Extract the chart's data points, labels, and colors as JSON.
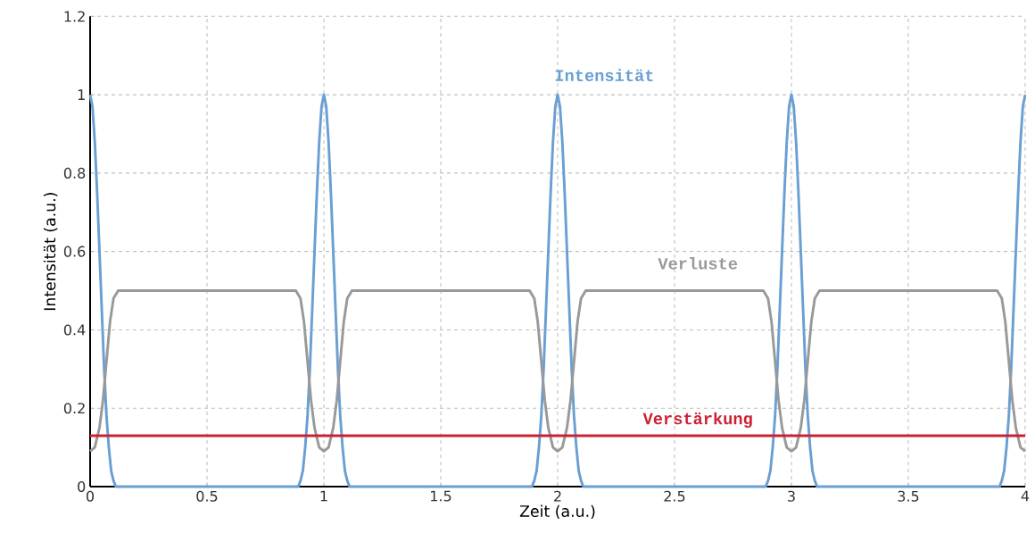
{
  "chart_data": {
    "type": "line",
    "xlabel": "Zeit (a.u.)",
    "ylabel": "Intensität (a.u.)",
    "xlim": [
      0,
      4
    ],
    "ylim": [
      0,
      1.2
    ],
    "xticks": [
      0,
      0.5,
      1,
      1.5,
      2,
      2.5,
      3,
      3.5,
      4
    ],
    "yticks": [
      0,
      0.2,
      0.4,
      0.6,
      0.8,
      1,
      1.2
    ],
    "grid": true,
    "legend": false,
    "marker": "none",
    "line_style": "solid",
    "series": [
      {
        "name": "Intensität",
        "color": "#6a9fd4",
        "x": [
          0,
          0.01,
          0.02,
          0.03,
          0.04,
          0.05,
          0.06,
          0.07,
          0.08,
          0.09,
          0.1,
          0.11,
          0.89,
          0.9,
          0.91,
          0.92,
          0.93,
          0.94,
          0.95,
          0.96,
          0.97,
          0.98,
          0.99,
          1,
          1.01,
          1.02,
          1.03,
          1.04,
          1.05,
          1.06,
          1.07,
          1.08,
          1.09,
          1.1,
          1.11,
          1.89,
          1.9,
          1.91,
          1.92,
          1.93,
          1.94,
          1.95,
          1.96,
          1.97,
          1.98,
          1.99,
          2,
          2.01,
          2.02,
          2.03,
          2.04,
          2.05,
          2.06,
          2.07,
          2.08,
          2.09,
          2.1,
          2.11,
          2.89,
          2.9,
          2.91,
          2.92,
          2.93,
          2.94,
          2.95,
          2.96,
          2.97,
          2.98,
          2.99,
          3,
          3.01,
          3.02,
          3.03,
          3.04,
          3.05,
          3.06,
          3.07,
          3.08,
          3.09,
          3.1,
          3.11,
          3.89,
          3.9,
          3.91,
          3.92,
          3.93,
          3.94,
          3.95,
          3.96,
          3.97,
          3.98,
          3.99,
          4
        ],
        "values": [
          1,
          0.97,
          0.88,
          0.75,
          0.6,
          0.45,
          0.3,
          0.18,
          0.1,
          0.04,
          0.015,
          0,
          0,
          0.015,
          0.04,
          0.1,
          0.18,
          0.3,
          0.45,
          0.6,
          0.75,
          0.88,
          0.97,
          1,
          0.97,
          0.88,
          0.75,
          0.6,
          0.45,
          0.3,
          0.18,
          0.1,
          0.04,
          0.015,
          0,
          0,
          0.015,
          0.04,
          0.1,
          0.18,
          0.3,
          0.45,
          0.6,
          0.75,
          0.88,
          0.97,
          1,
          0.97,
          0.88,
          0.75,
          0.6,
          0.45,
          0.3,
          0.18,
          0.1,
          0.04,
          0.015,
          0,
          0,
          0.015,
          0.04,
          0.1,
          0.18,
          0.3,
          0.45,
          0.6,
          0.75,
          0.88,
          0.97,
          1,
          0.97,
          0.88,
          0.75,
          0.6,
          0.45,
          0.3,
          0.18,
          0.1,
          0.04,
          0.015,
          0,
          0,
          0.015,
          0.04,
          0.1,
          0.18,
          0.3,
          0.45,
          0.6,
          0.75,
          0.88,
          0.97,
          1
        ]
      },
      {
        "name": "Verluste",
        "color": "#999999",
        "x": [
          0,
          0.02,
          0.04,
          0.055,
          0.07,
          0.085,
          0.1,
          0.12,
          0.88,
          0.9,
          0.915,
          0.93,
          0.945,
          0.96,
          0.98,
          1,
          1.02,
          1.04,
          1.055,
          1.07,
          1.085,
          1.1,
          1.12,
          1.88,
          1.9,
          1.915,
          1.93,
          1.945,
          1.96,
          1.98,
          2,
          2.02,
          2.04,
          2.055,
          2.07,
          2.085,
          2.1,
          2.12,
          2.88,
          2.9,
          2.915,
          2.93,
          2.945,
          2.96,
          2.98,
          3,
          3.02,
          3.04,
          3.055,
          3.07,
          3.085,
          3.1,
          3.12,
          3.88,
          3.9,
          3.915,
          3.93,
          3.945,
          3.96,
          3.98,
          4
        ],
        "values": [
          0.09,
          0.1,
          0.15,
          0.22,
          0.32,
          0.42,
          0.48,
          0.5,
          0.5,
          0.48,
          0.42,
          0.32,
          0.22,
          0.15,
          0.1,
          0.09,
          0.1,
          0.15,
          0.22,
          0.32,
          0.42,
          0.48,
          0.5,
          0.5,
          0.48,
          0.42,
          0.32,
          0.22,
          0.15,
          0.1,
          0.09,
          0.1,
          0.15,
          0.22,
          0.32,
          0.42,
          0.48,
          0.5,
          0.5,
          0.48,
          0.42,
          0.32,
          0.22,
          0.15,
          0.1,
          0.09,
          0.1,
          0.15,
          0.22,
          0.32,
          0.42,
          0.48,
          0.5,
          0.5,
          0.48,
          0.42,
          0.32,
          0.22,
          0.15,
          0.1,
          0.09
        ]
      },
      {
        "name": "Verstärkung",
        "color": "#cc2233",
        "x": [
          0,
          4
        ],
        "values": [
          0.13,
          0.13
        ]
      }
    ]
  }
}
